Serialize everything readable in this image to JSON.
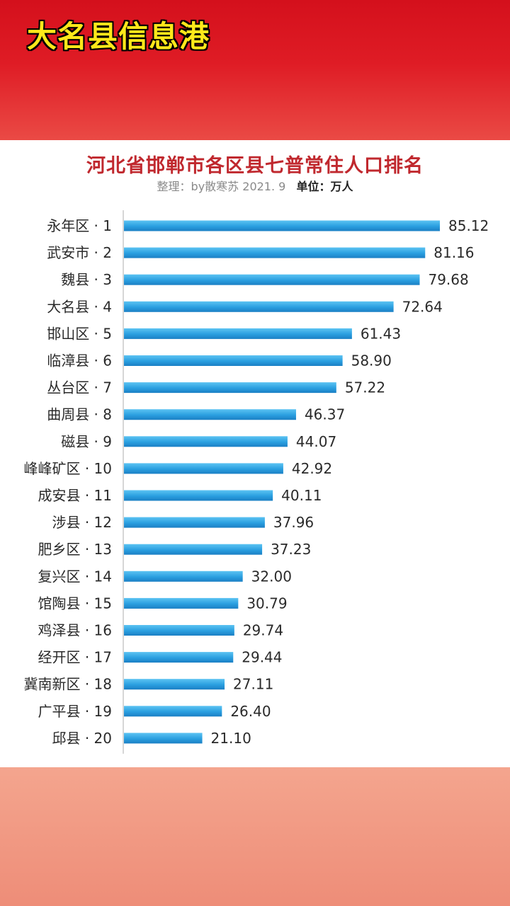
{
  "header": {
    "channel_title": "大名县信息港"
  },
  "chart_data": {
    "type": "bar",
    "orientation": "horizontal",
    "title": "河北省邯郸市各区县七普常住人口排名",
    "credit": "整理：by散寒苏  2021. 9",
    "unit": "单位：万人",
    "categories": [
      "永年区 · 1",
      "武安市 · 2",
      "魏县 · 3",
      "大名县 · 4",
      "邯山区 · 5",
      "临漳县 · 6",
      "丛台区 · 7",
      "曲周县 · 8",
      "磁县 · 9",
      "峰峰矿区 · 10",
      "成安县 · 11",
      "涉县 · 12",
      "肥乡区 · 13",
      "复兴区 · 14",
      "馆陶县 · 15",
      "鸡泽县 · 16",
      "经开区 · 17",
      "冀南新区 · 18",
      "广平县 · 19",
      "邱县 · 20"
    ],
    "values": [
      85.12,
      81.16,
      79.68,
      72.64,
      61.43,
      58.9,
      57.22,
      46.37,
      44.07,
      42.92,
      40.11,
      37.96,
      37.23,
      32.0,
      30.79,
      29.74,
      29.44,
      27.11,
      26.4,
      21.1
    ],
    "value_labels": [
      "85.12",
      "81.16",
      "79.68",
      "72.64",
      "61.43",
      "58.90",
      "57.22",
      "46.37",
      "44.07",
      "42.92",
      "40.11",
      "37.96",
      "37.23",
      "32.00",
      "30.79",
      "29.74",
      "29.44",
      "27.11",
      "26.40",
      "21.10"
    ],
    "bar_color": "#2a9fe0",
    "grid": false,
    "legend": "none"
  }
}
